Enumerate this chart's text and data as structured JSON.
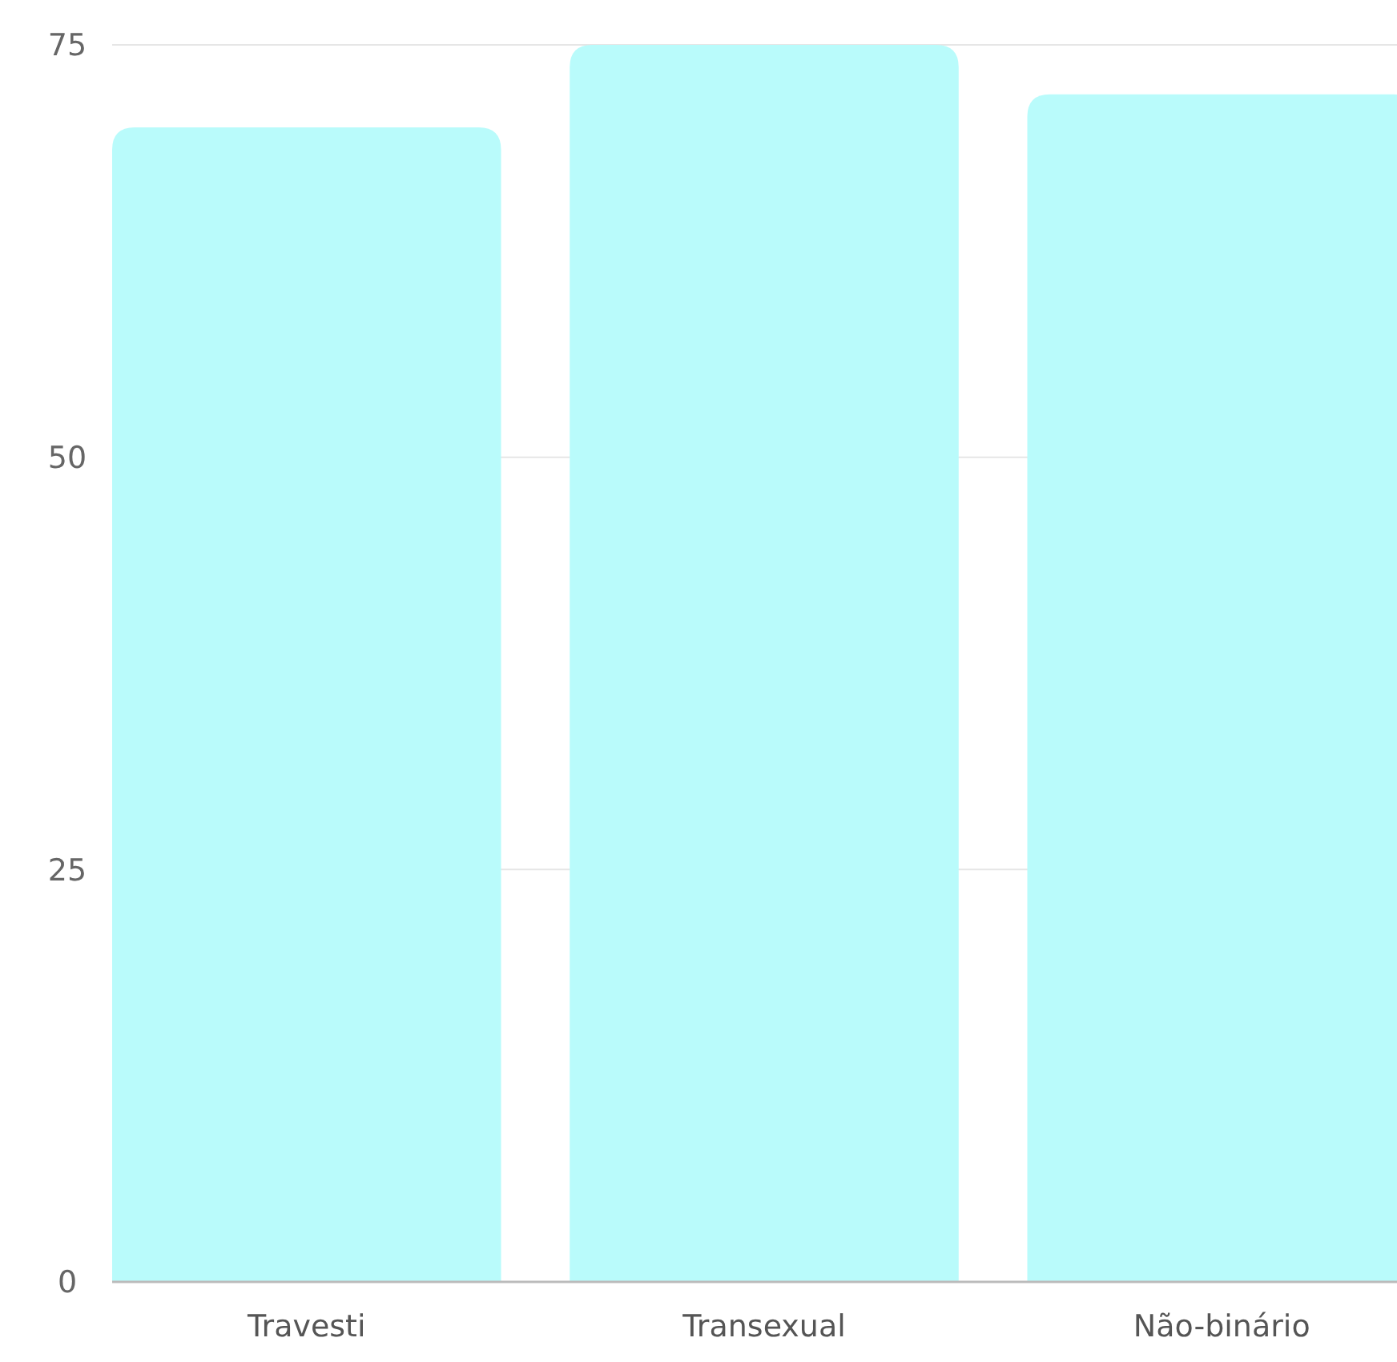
{
  "chart_data": {
    "type": "bar",
    "categories": [
      "Travesti",
      "Transexual",
      "Não-binário"
    ],
    "values": [
      70,
      75,
      72
    ],
    "color": "#b9fbfb",
    "ylim": [
      0,
      75
    ],
    "yticks": [
      0,
      25,
      50,
      75
    ],
    "grid": "y"
  }
}
